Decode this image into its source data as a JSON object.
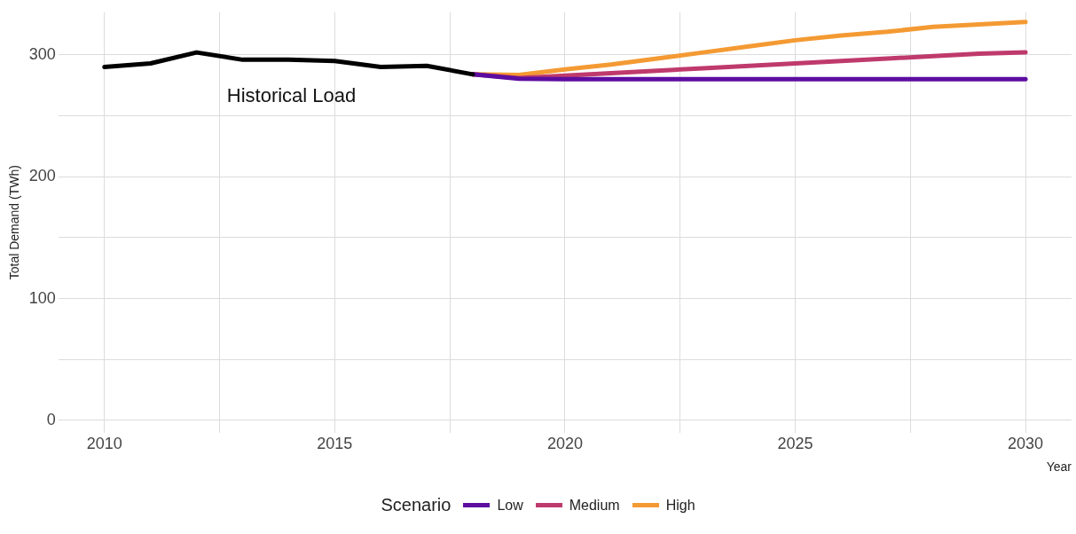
{
  "chart_data": {
    "type": "line",
    "xlabel": "Year",
    "ylabel": "Total Demand (TWh)",
    "legend_title": "Scenario",
    "legend": "bottom",
    "grid": true,
    "xlim": [
      2009,
      2031
    ],
    "xticks": [
      2010,
      {
        "value": 2012.5,
        "label": null
      },
      2015,
      {
        "value": 2017.5,
        "label": null
      },
      2020,
      {
        "value": 2022.5,
        "label": null
      },
      2025,
      {
        "value": 2027.5,
        "label": null
      },
      2030
    ],
    "ylim": [
      -10,
      335
    ],
    "yticks": [
      0,
      {
        "value": 50,
        "label": null
      },
      100,
      {
        "value": 150,
        "label": null
      },
      200,
      {
        "value": 250,
        "label": null
      },
      300
    ],
    "annotations": [
      "Historical Load"
    ],
    "series": [
      {
        "color": "#000000",
        "x": [
          2010,
          2011,
          2012,
          2013,
          2014,
          2015,
          2016,
          2017,
          2018
        ],
        "values": [
          290,
          293,
          302,
          296,
          296,
          295,
          290,
          291,
          284
        ]
      },
      {
        "name": "Low",
        "color": "#5c0da0",
        "x": [
          2018,
          2019,
          2020,
          2021,
          2022,
          2023,
          2024,
          2025,
          2026,
          2027,
          2028,
          2029,
          2030
        ],
        "values": [
          284,
          280.5,
          280,
          280,
          280,
          280,
          280,
          280,
          280,
          280,
          280,
          280,
          280
        ]
      },
      {
        "name": "Medium",
        "color": "#bf3a6c",
        "x": [
          2018,
          2019,
          2020,
          2021,
          2022,
          2023,
          2024,
          2025,
          2026,
          2027,
          2028,
          2029,
          2030
        ],
        "values": [
          284,
          281,
          283,
          285,
          287,
          289,
          291,
          293,
          295,
          297,
          299,
          301,
          302
        ]
      },
      {
        "name": "High",
        "color": "#f49a33",
        "x": [
          2018,
          2019,
          2020,
          2021,
          2022,
          2023,
          2024,
          2025,
          2026,
          2027,
          2028,
          2029,
          2030
        ],
        "values": [
          284,
          283.5,
          288,
          292,
          297,
          302,
          307,
          312,
          316,
          319,
          323,
          325,
          327
        ]
      }
    ]
  }
}
